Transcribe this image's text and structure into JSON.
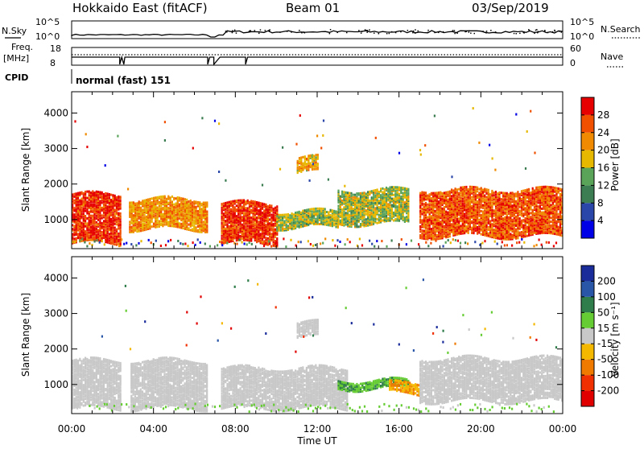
{
  "header": {
    "title": "Hokkaido East (fitACF)",
    "beam": "Beam 01",
    "date": "03/Sep/2019"
  },
  "panels": {
    "nsky": {
      "label": "N.Sky",
      "ticks": [
        "10^5",
        "10^0"
      ],
      "right_label": "N.Search",
      "right_ticks": [
        "10^5",
        "10^0"
      ]
    },
    "freq": {
      "label_top": "Freq.",
      "label_unit": "[MHz]",
      "ticks": [
        "18",
        "8"
      ],
      "right_label": "Nave",
      "right_ticks": [
        "60",
        "0"
      ]
    },
    "cpid": {
      "label": "CPID",
      "value": "normal (fast) 151"
    }
  },
  "colorbars": {
    "power": {
      "label": "Power [dB]",
      "ticks": [
        "28",
        "24",
        "20",
        "16",
        "12",
        "8",
        "4"
      ],
      "colors": [
        "#0000e6",
        "#2a46a8",
        "#3c7e52",
        "#5aa45a",
        "#e6b800",
        "#f08a00",
        "#f05000",
        "#e60000"
      ]
    },
    "velocity": {
      "label": "Velocity [m s⁻¹]",
      "ticks": [
        "200",
        "100",
        "50",
        "15",
        "-15",
        "-50",
        "-100",
        "-200"
      ],
      "colors": [
        "#1a2c9a",
        "#2a56a8",
        "#2f7d4a",
        "#66cc33",
        "#c8c8c8",
        "#f5b800",
        "#f07a00",
        "#f03000",
        "#e00000"
      ]
    }
  },
  "chart_data": [
    {
      "type": "heatmap",
      "name": "power",
      "ylabel": "Slant Range [km]",
      "xlabel": "Time UT",
      "x_ticks": [
        "00:00",
        "04:00",
        "08:00",
        "12:00",
        "16:00",
        "20:00",
        "00:00"
      ],
      "y_ticks": [
        1000,
        2000,
        3000,
        4000
      ],
      "xlim_hours": [
        0,
        24
      ],
      "ylim_km": [
        180,
        4600
      ],
      "blobs": [
        {
          "t0": 0.0,
          "t1": 2.4,
          "r0": 300,
          "r1": 1700,
          "level": 28
        },
        {
          "t0": 2.8,
          "t1": 6.6,
          "r0": 700,
          "r1": 1550,
          "level": 22
        },
        {
          "t0": 7.3,
          "t1": 10.0,
          "r0": 300,
          "r1": 1450,
          "level": 28
        },
        {
          "t0": 10.0,
          "t1": 13.0,
          "r0": 750,
          "r1": 1200,
          "level": 16
        },
        {
          "t0": 11.0,
          "t1": 12.0,
          "r0": 2300,
          "r1": 2700,
          "level": 20
        },
        {
          "t0": 13.0,
          "t1": 16.5,
          "r0": 850,
          "r1": 1800,
          "level": 16
        },
        {
          "t0": 17.0,
          "t1": 24.0,
          "r0": 500,
          "r1": 1800,
          "level": 26
        }
      ]
    },
    {
      "type": "heatmap",
      "name": "velocity",
      "ylabel": "Slant Range [km]",
      "xlabel": "Time UT",
      "x_ticks": [
        "00:00",
        "04:00",
        "08:00",
        "12:00",
        "16:00",
        "20:00",
        "00:00"
      ],
      "y_ticks": [
        1000,
        2000,
        3000,
        4000
      ],
      "xlim_hours": [
        0,
        24
      ],
      "ylim_km": [
        180,
        4600
      ],
      "blobs": [
        {
          "t0": 0.0,
          "t1": 6.6,
          "r0": 300,
          "r1": 1650,
          "level": 0
        },
        {
          "t0": 7.3,
          "t1": 13.5,
          "r0": 300,
          "r1": 1450,
          "level": 0
        },
        {
          "t0": 11.0,
          "t1": 12.0,
          "r0": 2300,
          "r1": 2700,
          "level": 0
        },
        {
          "t0": 13.0,
          "t1": 16.5,
          "r0": 850,
          "r1": 1100,
          "level": 30
        },
        {
          "t0": 15.5,
          "t1": 17.0,
          "r0": 700,
          "r1": 1000,
          "level": -30
        },
        {
          "t0": 17.0,
          "t1": 24.0,
          "r0": 500,
          "r1": 1700,
          "level": 0
        }
      ]
    }
  ],
  "xlabel": "Time UT"
}
